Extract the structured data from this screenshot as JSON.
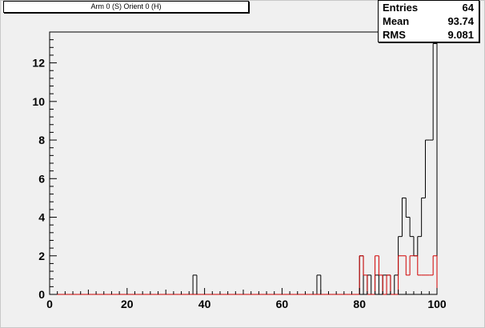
{
  "title": "Arm 0 (S) Orient 0 (H)",
  "stats": [
    {
      "label": "Entries",
      "value": "64"
    },
    {
      "label": "Mean",
      "value": "93.74"
    },
    {
      "label": "RMS",
      "value": "9.081"
    }
  ],
  "chart_data": {
    "type": "bar",
    "title": "Arm 0 (S) Orient 0 (H)",
    "xlabel": "",
    "ylabel": "",
    "xlim": [
      0,
      100
    ],
    "ylim": [
      0,
      13.6
    ],
    "bin_width": 1,
    "x_ticks": [
      0,
      20,
      40,
      60,
      80,
      100
    ],
    "y_ticks": [
      0,
      2,
      4,
      6,
      8,
      10,
      12
    ],
    "series": [
      {
        "color": "#000000",
        "style": "step",
        "bins": [
          {
            "x": 37,
            "y": 1
          },
          {
            "x": 69,
            "y": 1
          },
          {
            "x": 80,
            "y": 2
          },
          {
            "x": 82,
            "y": 1
          },
          {
            "x": 84,
            "y": 1
          },
          {
            "x": 86,
            "y": 1
          },
          {
            "x": 87,
            "y": 1
          },
          {
            "x": 89,
            "y": 1
          },
          {
            "x": 90,
            "y": 3
          },
          {
            "x": 91,
            "y": 5
          },
          {
            "x": 92,
            "y": 4
          },
          {
            "x": 93,
            "y": 3
          },
          {
            "x": 94,
            "y": 2
          },
          {
            "x": 95,
            "y": 3
          },
          {
            "x": 96,
            "y": 5
          },
          {
            "x": 97,
            "y": 8
          },
          {
            "x": 98,
            "y": 8
          },
          {
            "x": 99,
            "y": 13
          }
        ]
      },
      {
        "color": "#d00000",
        "style": "step",
        "bins": [
          {
            "x": 80,
            "y": 2
          },
          {
            "x": 81,
            "y": 1
          },
          {
            "x": 84,
            "y": 2
          },
          {
            "x": 85,
            "y": 1
          },
          {
            "x": 87,
            "y": 1
          },
          {
            "x": 90,
            "y": 2
          },
          {
            "x": 91,
            "y": 2
          },
          {
            "x": 92,
            "y": 1
          },
          {
            "x": 93,
            "y": 2
          },
          {
            "x": 94,
            "y": 2
          },
          {
            "x": 95,
            "y": 1
          },
          {
            "x": 96,
            "y": 1
          },
          {
            "x": 97,
            "y": 1
          },
          {
            "x": 98,
            "y": 1
          },
          {
            "x": 99,
            "y": 2
          }
        ]
      }
    ]
  }
}
